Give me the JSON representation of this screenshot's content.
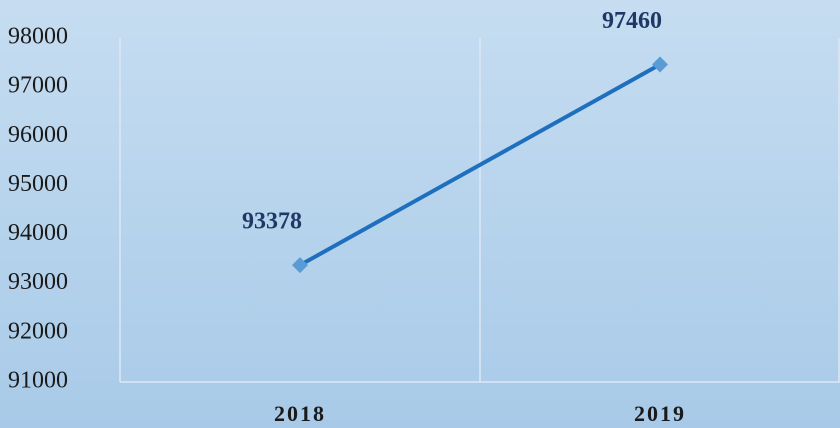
{
  "chart_data": {
    "type": "line",
    "categories": [
      "2018",
      "2019"
    ],
    "values": [
      93378,
      97460
    ],
    "color": "#1f6fbf",
    "marker_color": "#5b9bd5",
    "ylim": [
      91000,
      98000
    ],
    "yticks": [
      91000,
      92000,
      93000,
      94000,
      95000,
      96000,
      97000,
      98000
    ],
    "grid": false
  }
}
